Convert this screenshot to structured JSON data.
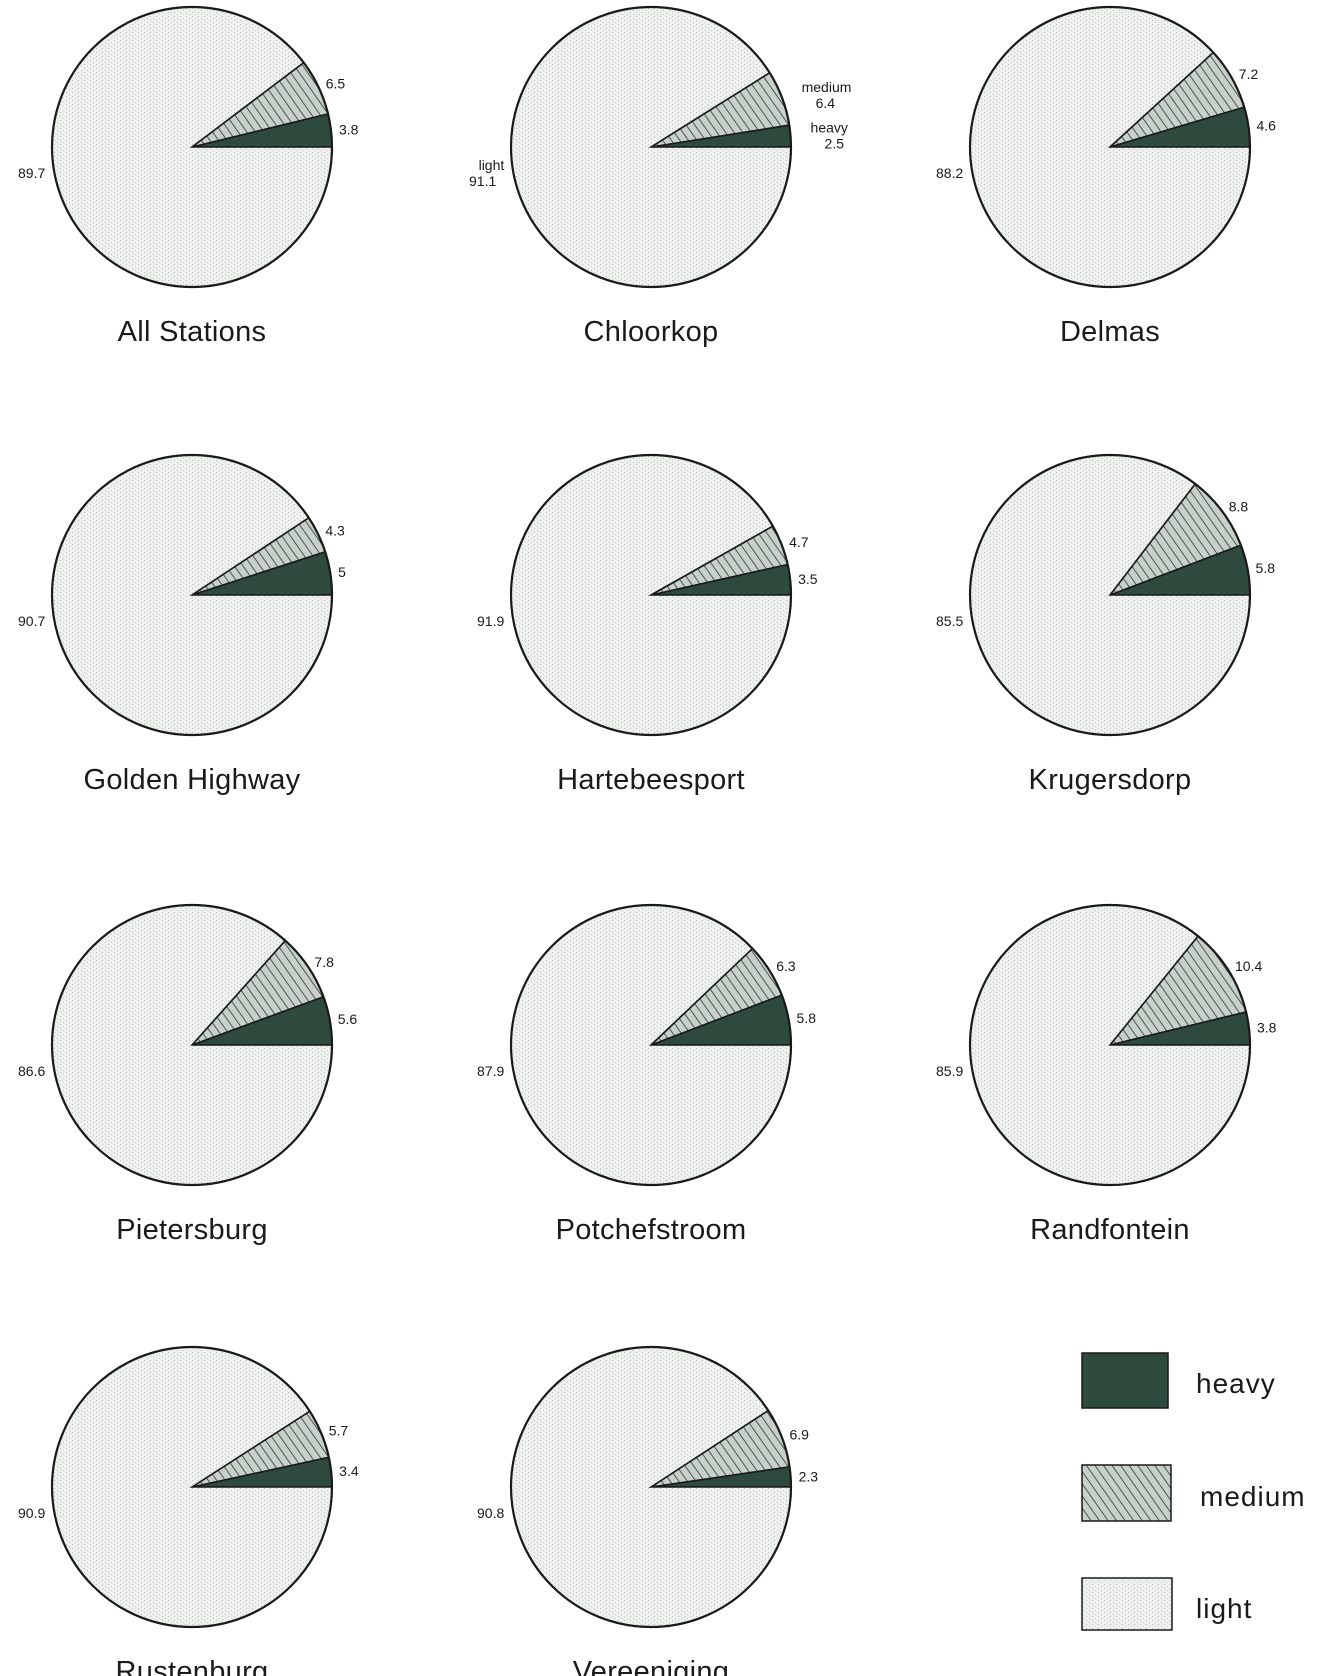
{
  "chart_data": [
    {
      "type": "pie",
      "title": "All Stations",
      "slices": [
        {
          "category": "heavy",
          "value": 3.8,
          "label": "3.8"
        },
        {
          "category": "medium",
          "value": 6.5,
          "label": "6.5"
        },
        {
          "category": "light",
          "value": 89.7,
          "label": "89.7"
        }
      ]
    },
    {
      "type": "pie",
      "title": "Chloorkop",
      "slices": [
        {
          "category": "heavy",
          "value": 2.5,
          "label": "2.5",
          "name": "heavy"
        },
        {
          "category": "medium",
          "value": 6.4,
          "label": "6.4",
          "name": "medium"
        },
        {
          "category": "light",
          "value": 91.1,
          "label": "91.1",
          "name": "light"
        }
      ]
    },
    {
      "type": "pie",
      "title": "Delmas",
      "slices": [
        {
          "category": "heavy",
          "value": 4.6,
          "label": "4.6"
        },
        {
          "category": "medium",
          "value": 7.2,
          "label": "7.2"
        },
        {
          "category": "light",
          "value": 88.2,
          "label": "88.2"
        }
      ]
    },
    {
      "type": "pie",
      "title": "Golden Highway",
      "slices": [
        {
          "category": "heavy",
          "value": 5,
          "label": "5"
        },
        {
          "category": "medium",
          "value": 4.3,
          "label": "4.3"
        },
        {
          "category": "light",
          "value": 90.7,
          "label": "90.7"
        }
      ]
    },
    {
      "type": "pie",
      "title": "Hartebeesport",
      "slices": [
        {
          "category": "heavy",
          "value": 3.5,
          "label": "3.5"
        },
        {
          "category": "medium",
          "value": 4.7,
          "label": "4.7"
        },
        {
          "category": "light",
          "value": 91.9,
          "label": "91.9"
        }
      ]
    },
    {
      "type": "pie",
      "title": "Krugersdorp",
      "slices": [
        {
          "category": "heavy",
          "value": 5.8,
          "label": "5.8"
        },
        {
          "category": "medium",
          "value": 8.8,
          "label": "8.8"
        },
        {
          "category": "light",
          "value": 85.5,
          "label": "85.5"
        }
      ]
    },
    {
      "type": "pie",
      "title": "Pietersburg",
      "slices": [
        {
          "category": "heavy",
          "value": 5.6,
          "label": "5.6"
        },
        {
          "category": "medium",
          "value": 7.8,
          "label": "7.8"
        },
        {
          "category": "light",
          "value": 86.6,
          "label": "86.6"
        }
      ]
    },
    {
      "type": "pie",
      "title": "Potchefstroom",
      "slices": [
        {
          "category": "heavy",
          "value": 5.8,
          "label": "5.8"
        },
        {
          "category": "medium",
          "value": 6.3,
          "label": "6.3"
        },
        {
          "category": "light",
          "value": 87.9,
          "label": "87.9"
        }
      ]
    },
    {
      "type": "pie",
      "title": "Randfontein",
      "slices": [
        {
          "category": "heavy",
          "value": 3.8,
          "label": "3.8"
        },
        {
          "category": "medium",
          "value": 10.4,
          "label": "10.4"
        },
        {
          "category": "light",
          "value": 85.9,
          "label": "85.9"
        }
      ]
    },
    {
      "type": "pie",
      "title": "Rustenburg",
      "slices": [
        {
          "category": "heavy",
          "value": 3.4,
          "label": "3.4"
        },
        {
          "category": "medium",
          "value": 5.7,
          "label": "5.7"
        },
        {
          "category": "light",
          "value": 90.9,
          "label": "90.9"
        }
      ]
    },
    {
      "type": "pie",
      "title": "Vereeniging",
      "slices": [
        {
          "category": "heavy",
          "value": 2.3,
          "label": "2.3"
        },
        {
          "category": "medium",
          "value": 6.9,
          "label": "6.9"
        },
        {
          "category": "light",
          "value": 90.8,
          "label": "90.8"
        }
      ]
    }
  ],
  "legend": {
    "placement": "bottom-right",
    "items": [
      {
        "key": "heavy",
        "label": "heavy"
      },
      {
        "key": "medium",
        "label": "medium"
      },
      {
        "key": "light",
        "label": "light"
      }
    ]
  },
  "colors": {
    "heavy": "#2e4a3c",
    "medium": "#9aa89e",
    "light": "#eef0ee",
    "outline": "#1a1a1a"
  }
}
